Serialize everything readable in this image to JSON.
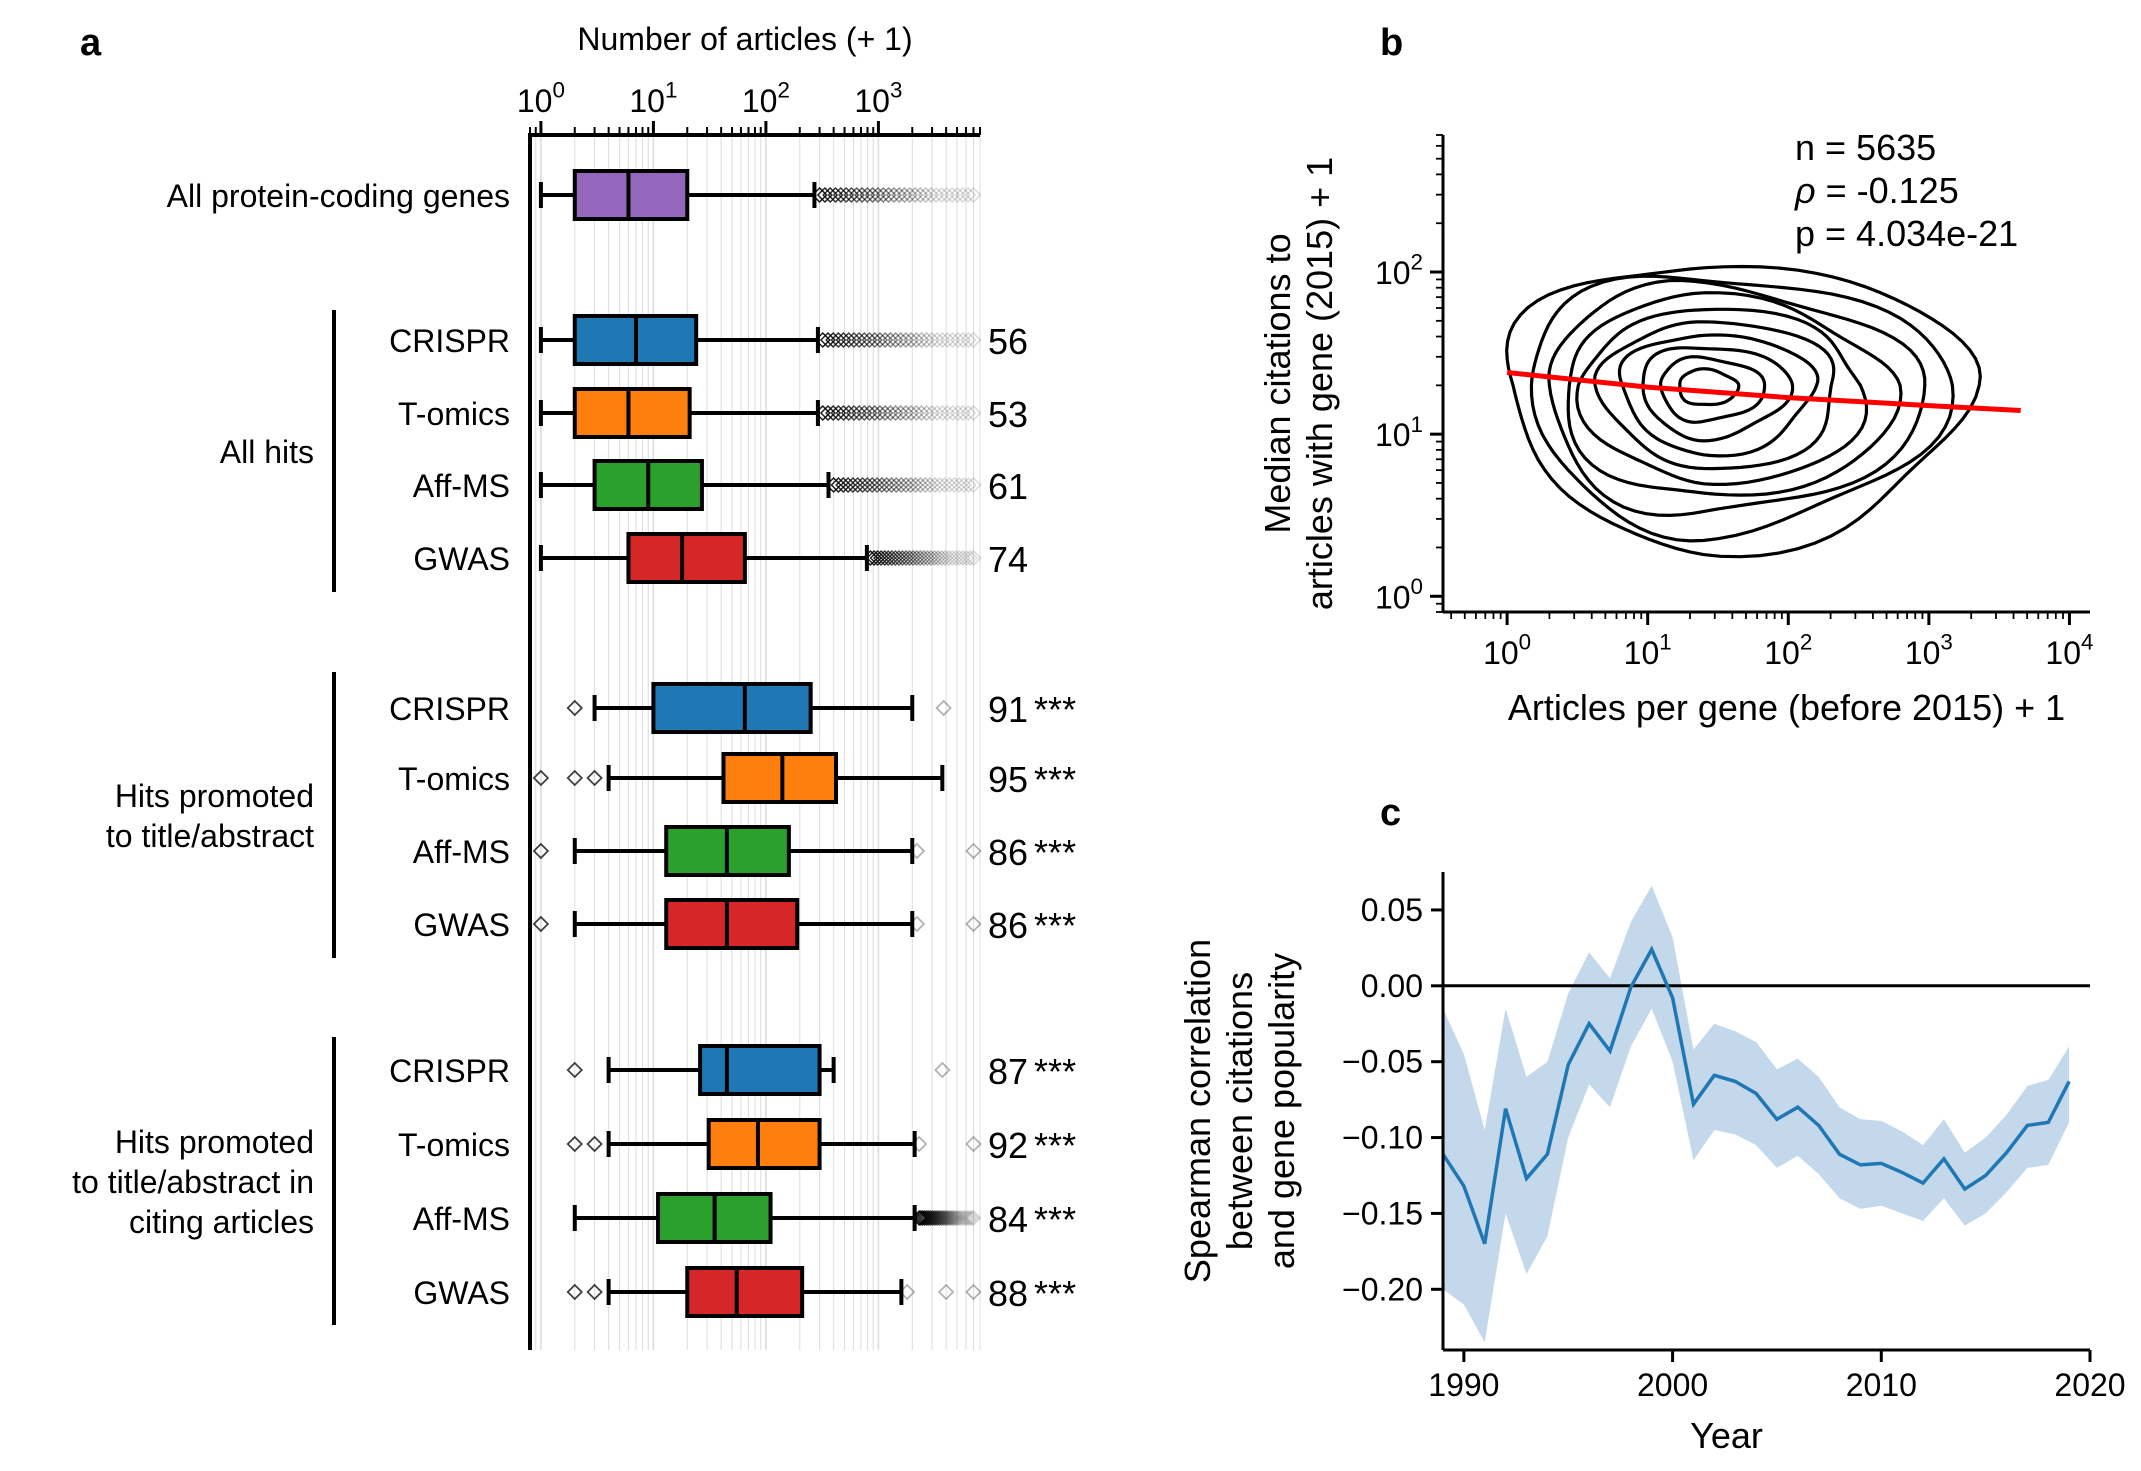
{
  "panel_labels": {
    "a": "a",
    "b": "b",
    "c": "c"
  },
  "colors": {
    "purple": "#9467bd",
    "blue": "#1f77b4",
    "orange": "#ff7f0e",
    "green": "#2ca02c",
    "red": "#d62728",
    "ci_band": "#c4d8ec",
    "fit": "#ff0000"
  },
  "chart_data": [
    {
      "type": "box",
      "panel": "a",
      "xlabel": "Number of articles (+ 1)",
      "xscale": "log",
      "xlim": [
        0.8,
        8000
      ],
      "xticks": [
        {
          "value": 1,
          "base": "10",
          "exp": "0"
        },
        {
          "value": 10,
          "base": "10",
          "exp": "1"
        },
        {
          "value": 100,
          "base": "10",
          "exp": "2"
        },
        {
          "value": 1000,
          "base": "10",
          "exp": "3"
        }
      ],
      "groups": [
        {
          "label": "All hits",
          "lines": [
            "All hits"
          ]
        },
        {
          "label": "Hits promoted to title/abstract",
          "lines": [
            "Hits promoted",
            "to title/abstract"
          ]
        },
        {
          "label": "Hits promoted to title/abstract in citing articles",
          "lines": [
            "Hits promoted",
            "to title/abstract in",
            "citing articles"
          ]
        }
      ],
      "rows": [
        {
          "label": "All protein-coding genes",
          "color": "purple",
          "wlo": 1,
          "q1": 2,
          "med": 6,
          "q3": 20,
          "whi": 270,
          "fliers": [
            300,
            7000
          ],
          "annotation": "",
          "stars": ""
        },
        {
          "label": "CRISPR",
          "group": "All hits",
          "color": "blue",
          "wlo": 1,
          "q1": 2,
          "med": 7,
          "q3": 24,
          "whi": 290,
          "fliers": [
            320,
            7000
          ],
          "annotation": "56",
          "stars": ""
        },
        {
          "label": "T-omics",
          "group": "All hits",
          "color": "orange",
          "wlo": 1,
          "q1": 2,
          "med": 6,
          "q3": 21,
          "whi": 290,
          "fliers": [
            320,
            7000
          ],
          "annotation": "53",
          "stars": ""
        },
        {
          "label": "Aff-MS",
          "group": "All hits",
          "color": "green",
          "wlo": 1,
          "q1": 3,
          "med": 9,
          "q3": 27,
          "whi": 360,
          "fliers": [
            400,
            7000
          ],
          "annotation": "61",
          "stars": ""
        },
        {
          "label": "GWAS",
          "group": "All hits",
          "color": "red",
          "wlo": 1,
          "q1": 6,
          "med": 18,
          "q3": 65,
          "whi": 790,
          "fliers": [
            850,
            7000
          ],
          "annotation": "74",
          "stars": ""
        },
        {
          "label": "CRISPR",
          "group": "Hits promoted to title/abstract",
          "color": "blue",
          "wlo": 3,
          "q1": 10,
          "med": 65,
          "q3": 250,
          "whi": 2000,
          "fliers": [
            2,
            3800
          ],
          "annotation": "91",
          "stars": "***"
        },
        {
          "label": "T-omics",
          "group": "Hits promoted to title/abstract",
          "color": "orange",
          "wlo": 4,
          "q1": 42,
          "med": 140,
          "q3": 420,
          "whi": 3700,
          "fliers": [
            1,
            2,
            3
          ],
          "annotation": "95",
          "stars": "***"
        },
        {
          "label": "Aff-MS",
          "group": "Hits promoted to title/abstract",
          "color": "green",
          "wlo": 2,
          "q1": 13,
          "med": 45,
          "q3": 160,
          "whi": 2000,
          "fliers": [
            1,
            2200,
            7000
          ],
          "annotation": "86",
          "stars": "***"
        },
        {
          "label": "GWAS",
          "group": "Hits promoted to title/abstract",
          "color": "red",
          "wlo": 2,
          "q1": 13,
          "med": 45,
          "q3": 190,
          "whi": 2000,
          "fliers": [
            1,
            2200,
            7000
          ],
          "annotation": "86",
          "stars": "***"
        },
        {
          "label": "CRISPR",
          "group": "Hits promoted to title/abstract in citing articles",
          "color": "blue",
          "wlo": 4,
          "q1": 26,
          "med": 45,
          "q3": 300,
          "whi": 400,
          "fliers": [
            2,
            3700
          ],
          "annotation": "87",
          "stars": "***"
        },
        {
          "label": "T-omics",
          "group": "Hits promoted to title/abstract in citing articles",
          "color": "orange",
          "wlo": 4,
          "q1": 31,
          "med": 85,
          "q3": 300,
          "whi": 2100,
          "fliers": [
            2,
            3,
            2300,
            7000
          ],
          "annotation": "92",
          "stars": "***"
        },
        {
          "label": "Aff-MS",
          "group": "Hits promoted to title/abstract in citing articles",
          "color": "green",
          "wlo": 2,
          "q1": 11,
          "med": 35,
          "q3": 110,
          "whi": 2100,
          "fliers": [
            2300,
            7000
          ],
          "annotation": "84",
          "stars": "***"
        },
        {
          "label": "GWAS",
          "group": "Hits promoted to title/abstract in citing articles",
          "color": "red",
          "wlo": 4,
          "q1": 20,
          "med": 55,
          "q3": 210,
          "whi": 1600,
          "fliers": [
            2,
            3,
            1800,
            4000,
            7000
          ],
          "annotation": "88",
          "stars": "***"
        }
      ]
    },
    {
      "type": "contour",
      "panel": "b",
      "xlabel": "Articles per gene (before 2015) + 1",
      "ylabel_lines": [
        "Median citations to",
        "articles with gene (2015) + 1"
      ],
      "xscale": "log",
      "yscale": "log",
      "xlim": [
        0.35,
        14000
      ],
      "ylim": [
        0.8,
        700
      ],
      "xticks": [
        {
          "value": 1,
          "base": "10",
          "exp": "0"
        },
        {
          "value": 10,
          "base": "10",
          "exp": "1"
        },
        {
          "value": 100,
          "base": "10",
          "exp": "2"
        },
        {
          "value": 1000,
          "base": "10",
          "exp": "3"
        },
        {
          "value": 10000,
          "base": "10",
          "exp": "4"
        }
      ],
      "yticks": [
        {
          "value": 1,
          "base": "10",
          "exp": "0"
        },
        {
          "value": 10,
          "base": "10",
          "exp": "1"
        },
        {
          "value": 100,
          "base": "10",
          "exp": "2"
        }
      ],
      "stats": {
        "n": "n = 5635",
        "rho_symbol": "ρ",
        "rho_text": " = -0.125",
        "p": "p = 4.034e-21"
      },
      "density_center": {
        "x": 25,
        "y": 20
      },
      "outer_contour_extent": {
        "x": [
          1,
          2000
        ],
        "y": [
          2,
          115
        ]
      },
      "contour_levels": 10,
      "fit_line": {
        "x": [
          1,
          10,
          100,
          1000,
          4500
        ],
        "y": [
          24,
          19.5,
          16.8,
          15,
          14
        ]
      }
    },
    {
      "type": "line",
      "panel": "c",
      "xlabel": "Year",
      "ylabel_lines": [
        "Spearman correlation",
        "between citations",
        "and gene popularity"
      ],
      "xlim": [
        1989,
        2020
      ],
      "ylim": [
        -0.24,
        0.075
      ],
      "xticks": [
        1990,
        2000,
        2010,
        2020
      ],
      "yticks": [
        {
          "value": 0.05,
          "label": "0.05"
        },
        {
          "value": 0.0,
          "label": "0.00"
        },
        {
          "value": -0.05,
          "label": "−0.05"
        },
        {
          "value": -0.1,
          "label": "−0.10"
        },
        {
          "value": -0.15,
          "label": "−0.15"
        },
        {
          "value": -0.2,
          "label": "−0.20"
        }
      ],
      "hline": 0,
      "x": [
        1989,
        1990,
        1991,
        1992,
        1993,
        1994,
        1995,
        1996,
        1997,
        1998,
        1999,
        2000,
        2001,
        2002,
        2003,
        2004,
        2005,
        2006,
        2007,
        2008,
        2009,
        2010,
        2011,
        2012,
        2013,
        2014,
        2015,
        2016,
        2017,
        2018,
        2019
      ],
      "y": [
        -0.111,
        -0.132,
        -0.17,
        -0.081,
        -0.127,
        -0.111,
        -0.052,
        -0.025,
        -0.043,
        -0.001,
        0.024,
        -0.008,
        -0.078,
        -0.059,
        -0.063,
        -0.071,
        -0.088,
        -0.08,
        -0.092,
        -0.111,
        -0.118,
        -0.117,
        -0.123,
        -0.13,
        -0.114,
        -0.134,
        -0.125,
        -0.11,
        -0.092,
        -0.09,
        -0.063
      ],
      "lower": [
        -0.2,
        -0.21,
        -0.235,
        -0.15,
        -0.19,
        -0.165,
        -0.1,
        -0.065,
        -0.08,
        -0.04,
        -0.015,
        -0.05,
        -0.115,
        -0.095,
        -0.098,
        -0.105,
        -0.12,
        -0.112,
        -0.124,
        -0.14,
        -0.147,
        -0.145,
        -0.15,
        -0.155,
        -0.14,
        -0.158,
        -0.15,
        -0.136,
        -0.12,
        -0.118,
        -0.09
      ],
      "upper": [
        -0.015,
        -0.045,
        -0.095,
        -0.015,
        -0.06,
        -0.05,
        -0.005,
        0.022,
        0.005,
        0.042,
        0.066,
        0.032,
        -0.042,
        -0.025,
        -0.03,
        -0.037,
        -0.055,
        -0.048,
        -0.06,
        -0.08,
        -0.088,
        -0.089,
        -0.096,
        -0.105,
        -0.088,
        -0.11,
        -0.1,
        -0.085,
        -0.066,
        -0.062,
        -0.04
      ]
    }
  ]
}
